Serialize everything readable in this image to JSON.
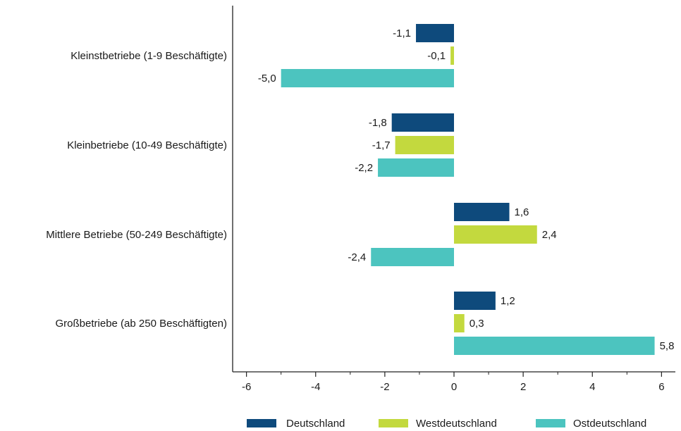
{
  "chart_data": {
    "type": "bar",
    "orientation": "horizontal",
    "categories": [
      "Kleinstbetriebe (1-9 Beschäftigte)",
      "Kleinbetriebe (10-49 Beschäftigte)",
      "Mittlere Betriebe (50-249 Beschäftigte)",
      "Großbetriebe (ab 250 Beschäftigten)"
    ],
    "series": [
      {
        "name": "Deutschland",
        "color": "#0e4a7c",
        "values": [
          -1.1,
          -1.8,
          1.6,
          1.2
        ],
        "labels": [
          "-1,1",
          "-1,8",
          "1,6",
          "1,2"
        ]
      },
      {
        "name": "Westdeutschland",
        "color": "#c3d93e",
        "values": [
          -0.1,
          -1.7,
          2.4,
          0.3
        ],
        "labels": [
          "-0,1",
          "-1,7",
          "2,4",
          "0,3"
        ]
      },
      {
        "name": "Ostdeutschland",
        "color": "#4cc4bf",
        "values": [
          -5.0,
          -2.2,
          -2.4,
          5.8
        ],
        "labels": [
          "-5,0",
          "-2,2",
          "-2,4",
          "5,8"
        ]
      }
    ],
    "xlim": [
      -6.4,
      6.4
    ],
    "xticks": [
      -6,
      -4,
      -2,
      0,
      2,
      4,
      6
    ],
    "xtick_labels": [
      "-6",
      "-4",
      "-2",
      "0",
      "2",
      "4",
      "6"
    ],
    "title": "",
    "xlabel": "",
    "ylabel": "",
    "grid": false,
    "legend_position": "bottom"
  }
}
